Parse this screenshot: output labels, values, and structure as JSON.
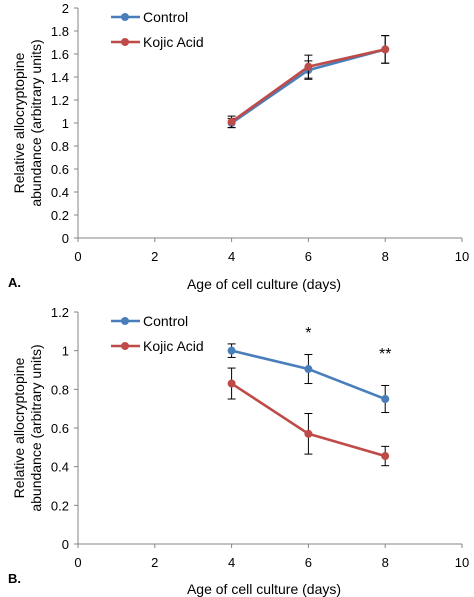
{
  "chart_data": [
    {
      "panel_label": "A.",
      "type": "line",
      "xlabel": "Age of cell culture (days)",
      "ylabel": [
        "Relative allocryptopine",
        "abundance (arbitrary units)"
      ],
      "xlim": [
        0,
        10
      ],
      "ylim": [
        0,
        2
      ],
      "x_ticks": [
        0,
        2,
        4,
        6,
        8,
        10
      ],
      "y_ticks": [
        0,
        0.2,
        0.4,
        0.6,
        0.8,
        1,
        1.2,
        1.4,
        1.6,
        1.8,
        2
      ],
      "legend": "top-left",
      "grid": false,
      "x": [
        4,
        6,
        8
      ],
      "series": [
        {
          "name": "Control",
          "color": "#4a7ebb",
          "values": [
            1.0,
            1.46,
            1.64
          ],
          "errors": [
            0.04,
            0.08,
            0.12
          ]
        },
        {
          "name": "Kojic Acid",
          "color": "#be4b48",
          "values": [
            1.01,
            1.49,
            1.64
          ],
          "errors": [
            0.05,
            0.1,
            0.12
          ]
        }
      ],
      "annotations": []
    },
    {
      "panel_label": "B.",
      "type": "line",
      "xlabel": "Age of cell culture (days)",
      "ylabel": [
        "Relative allocryptopine",
        "abundance (arbitrary units)"
      ],
      "xlim": [
        0,
        10
      ],
      "ylim": [
        0,
        1.2
      ],
      "x_ticks": [
        0,
        2,
        4,
        6,
        8,
        10
      ],
      "y_ticks": [
        0,
        0.2,
        0.4,
        0.6,
        0.8,
        1,
        1.2
      ],
      "legend": "top-left",
      "grid": false,
      "x": [
        4,
        6,
        8
      ],
      "series": [
        {
          "name": "Control",
          "color": "#4a7ebb",
          "values": [
            1.0,
            0.905,
            0.75
          ],
          "errors": [
            0.035,
            0.075,
            0.07
          ]
        },
        {
          "name": "Kojic Acid",
          "color": "#be4b48",
          "values": [
            0.83,
            0.57,
            0.455
          ],
          "errors": [
            0.08,
            0.105,
            0.05
          ]
        }
      ],
      "annotations": [
        {
          "x": 6,
          "text": "*"
        },
        {
          "x": 8,
          "text": "**"
        }
      ]
    }
  ]
}
